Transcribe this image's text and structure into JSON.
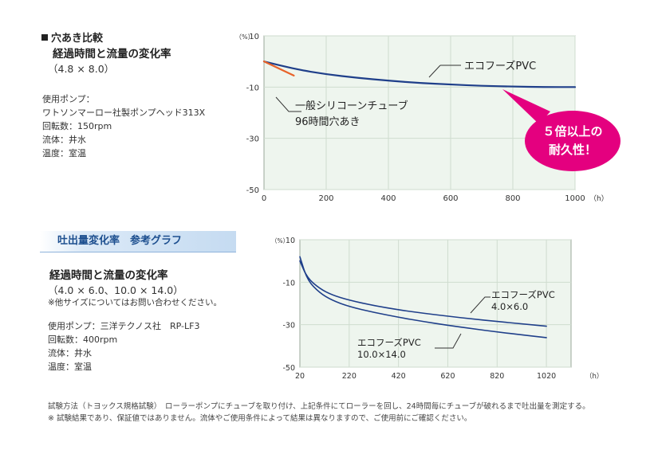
{
  "top": {
    "heading": "穴あき比較",
    "subheading": "経過時間と流量の変化率",
    "size": "（4.8 × 8.0）",
    "info": [
      "使用ポンプ：",
      "ワトソンマーロー社製ポンプヘッド313X",
      "回転数：150rpm",
      "流体：井水",
      "温度：室温"
    ]
  },
  "bottom": {
    "banner": "吐出量変化率　参考グラフ",
    "subheading": "経過時間と流量の変化率",
    "size": "（4.0 × 6.0、10.0 × 14.0）",
    "inquiry": "※他サイズについてはお問い合わせください。",
    "info": [
      "使用ポンプ：三洋テクノス社　RP-LF3",
      "回転数：400rpm",
      "流体：井水",
      "温度：室温"
    ]
  },
  "footer": {
    "method": "試験方法（トヨックス規格試験）　ローラーポンプにチューブを取り付け、上記条件にてローラーを回し、24時間毎にチューブが破れるまで吐出量を測定する。",
    "disclaimer": "※ 試験結果であり、保証値ではありません。流体やご使用条件によって結果は異なりますので、ご使用前にご確認ください。"
  },
  "colors": {
    "navy": "#1f3f8a",
    "orange": "#e8632a",
    "magenta": "#e4007f",
    "plot_bg": "#eef5ee",
    "grid": "#cfdccf"
  },
  "chart_data": [
    {
      "type": "line",
      "x_unit": "（h）",
      "y_unit": "（%）",
      "xlim": [
        0,
        1000
      ],
      "ylim": [
        -50,
        10
      ],
      "xticks": [
        0,
        200,
        400,
        600,
        800,
        1000
      ],
      "yticks": [
        10,
        -10,
        -30,
        -50
      ],
      "grid": true,
      "series": [
        {
          "name": "エコフーズPVC",
          "color": "#1f3f8a",
          "points": [
            [
              0,
              0
            ],
            [
              100,
              -3
            ],
            [
              200,
              -5
            ],
            [
              300,
              -6.4
            ],
            [
              400,
              -7.5
            ],
            [
              500,
              -8.4
            ],
            [
              600,
              -9.0
            ],
            [
              700,
              -9.5
            ],
            [
              800,
              -9.8
            ],
            [
              900,
              -10.0
            ],
            [
              1000,
              -10.0
            ]
          ]
        },
        {
          "name": "一般シリコーンチューブ",
          "color": "#e8632a",
          "points": [
            [
              0,
              0
            ],
            [
              96,
              -5.5
            ]
          ]
        }
      ],
      "annotations": [
        {
          "label": "エコフーズPVC"
        },
        {
          "label": "一般シリコーンチューブ"
        },
        {
          "label": "96時間穴あき"
        }
      ],
      "callout": [
        "５倍以上の",
        "耐久性！"
      ]
    },
    {
      "type": "line",
      "x_unit": "（h）",
      "y_unit": "（%）",
      "xlim": [
        20,
        1120
      ],
      "ylim": [
        -50,
        10
      ],
      "xticks": [
        20,
        220,
        420,
        620,
        820,
        1020
      ],
      "yticks": [
        10,
        -10,
        -30,
        -50
      ],
      "grid": true,
      "series": [
        {
          "name": "エコフーズPVC 4.0×6.0",
          "color": "#1f3f8a",
          "points": [
            [
              20,
              0
            ],
            [
              50,
              -8
            ],
            [
              100,
              -13
            ],
            [
              150,
              -16
            ],
            [
              220,
              -18.5
            ],
            [
              320,
              -21
            ],
            [
              420,
              -23
            ],
            [
              520,
              -24.6
            ],
            [
              620,
              -26
            ],
            [
              720,
              -27.3
            ],
            [
              820,
              -28.5
            ],
            [
              920,
              -29.6
            ],
            [
              1020,
              -30.7
            ]
          ]
        },
        {
          "name": "エコフーズPVC 10.0×14.0",
          "color": "#1f3f8a",
          "points": [
            [
              20,
              2
            ],
            [
              50,
              -9
            ],
            [
              100,
              -15
            ],
            [
              150,
              -18.5
            ],
            [
              220,
              -21.5
            ],
            [
              320,
              -24.2
            ],
            [
              420,
              -26.5
            ],
            [
              520,
              -28.5
            ],
            [
              620,
              -30.3
            ],
            [
              720,
              -31.9
            ],
            [
              820,
              -33.4
            ],
            [
              920,
              -34.8
            ],
            [
              1020,
              -36.1
            ]
          ]
        }
      ],
      "annotations": [
        {
          "label": "エコフーズPVC",
          "sub": "4.0×6.0"
        },
        {
          "label": "エコフーズPVC",
          "sub": "10.0×14.0"
        }
      ]
    }
  ]
}
